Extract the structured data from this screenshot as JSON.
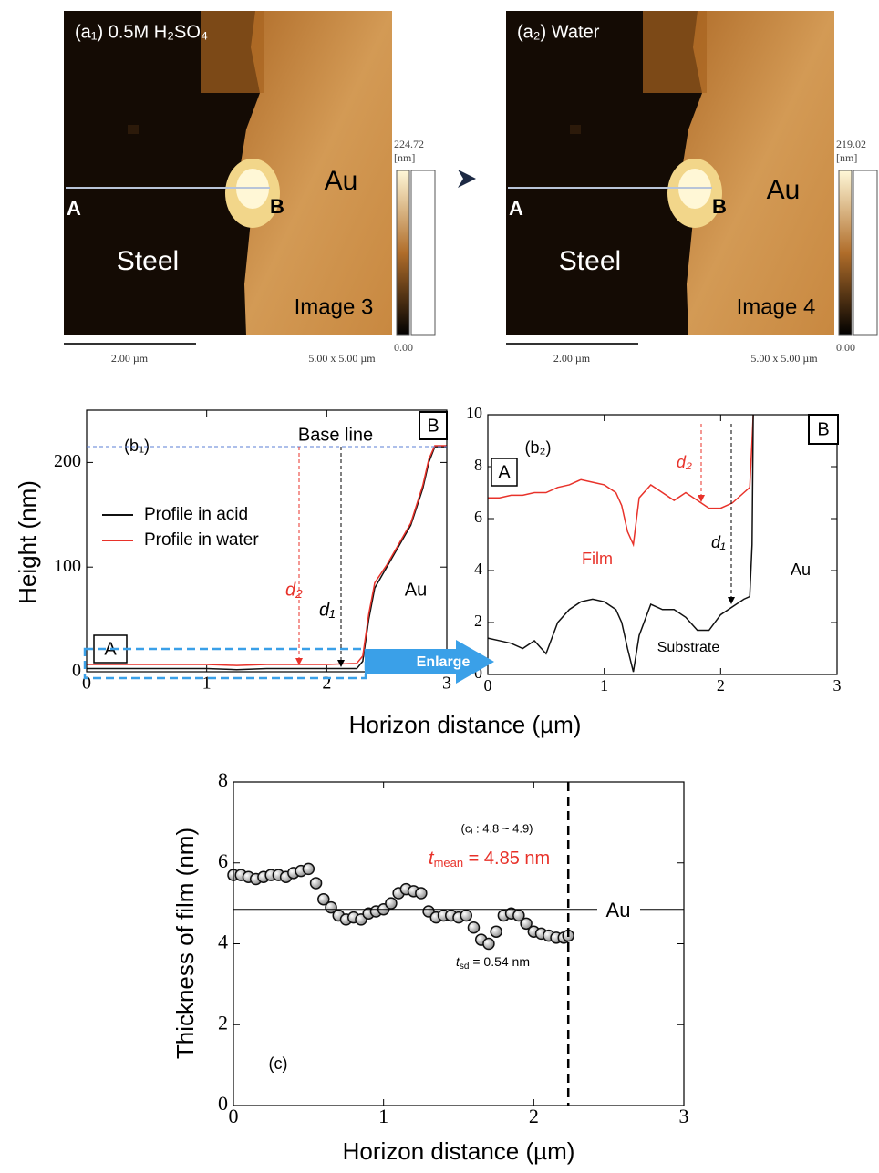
{
  "images": [
    {
      "label": "(a₁) 0.5M H₂SO₄",
      "au": "Au",
      "a": "A",
      "b": "B",
      "steel": "Steel",
      "image": "Image 3",
      "scale": "2.00 µm",
      "size": "5.00 x 5.00 µm",
      "cmax": "224.72",
      "unit": "[nm]",
      "cmin": "0.00"
    },
    {
      "label": "(a₂) Water",
      "au": "Au",
      "a": "A",
      "b": "B",
      "steel": "Steel",
      "image": "Image 4",
      "scale": "2.00 µm",
      "size": "5.00 x 5.00 µm",
      "cmax": "219.02",
      "unit": "[nm]",
      "cmin": "0.00"
    }
  ],
  "chart_data": [
    {
      "type": "line",
      "panel": "(b₁)",
      "y_label": "Height (nm)",
      "x_label": "Horizon distance (µm)",
      "x": [
        0,
        0.25,
        0.5,
        0.75,
        1.0,
        1.25,
        1.5,
        1.75,
        2.0,
        2.25,
        2.3,
        2.35,
        2.4,
        2.5,
        2.6,
        2.7,
        2.8,
        2.85,
        2.9,
        2.95,
        3.0
      ],
      "series": [
        {
          "name": "Profile in acid",
          "color": "#111111",
          "values": [
            3,
            3,
            3,
            3,
            3,
            2,
            3,
            3,
            3,
            3,
            10,
            50,
            80,
            100,
            120,
            140,
            175,
            200,
            215,
            215,
            215
          ]
        },
        {
          "name": "Profile in water",
          "color": "#e8322a",
          "values": [
            7,
            7,
            7,
            7,
            7,
            6,
            7,
            7,
            7,
            8,
            15,
            55,
            85,
            102,
            122,
            142,
            178,
            203,
            216,
            216,
            216
          ]
        }
      ],
      "xlim": [
        0,
        3
      ],
      "xticks": [
        0,
        1,
        2,
        3
      ],
      "ylim": [
        0,
        250
      ],
      "yticks": [
        0,
        100,
        200
      ],
      "annotations": {
        "base_line": "Base line",
        "a": "A",
        "b": "B",
        "au": "Au",
        "d2": "d₂",
        "d1": "d₁",
        "enlarge": "Enlarge"
      }
    },
    {
      "type": "line",
      "panel": "(b₂)",
      "x": [
        0,
        0.1,
        0.2,
        0.3,
        0.4,
        0.5,
        0.6,
        0.7,
        0.8,
        0.9,
        1.0,
        1.1,
        1.15,
        1.2,
        1.25,
        1.3,
        1.4,
        1.5,
        1.6,
        1.7,
        1.8,
        1.9,
        2.0,
        2.1,
        2.2,
        2.25,
        2.27,
        2.28
      ],
      "series": [
        {
          "name": "Profile in water",
          "color": "#e8322a",
          "values": [
            6.8,
            6.8,
            6.9,
            6.9,
            7.0,
            7.0,
            7.2,
            7.3,
            7.5,
            7.4,
            7.3,
            7.0,
            6.5,
            5.5,
            5.0,
            6.8,
            7.3,
            7.0,
            6.7,
            7.0,
            6.7,
            6.4,
            6.4,
            6.6,
            7.0,
            7.2,
            9,
            10
          ]
        },
        {
          "name": "Profile in acid",
          "color": "#111111",
          "values": [
            1.4,
            1.3,
            1.2,
            1.0,
            1.3,
            0.8,
            2.0,
            2.5,
            2.8,
            2.9,
            2.8,
            2.5,
            2.0,
            1.0,
            0.1,
            1.5,
            2.7,
            2.5,
            2.5,
            2.2,
            1.7,
            1.7,
            2.3,
            2.6,
            2.9,
            3.0,
            5,
            10
          ]
        }
      ],
      "xlim": [
        0,
        3
      ],
      "xticks": [
        0,
        1,
        2,
        3
      ],
      "ylim": [
        0,
        10
      ],
      "yticks": [
        0,
        2,
        4,
        6,
        8,
        10
      ],
      "annotations": {
        "a": "A",
        "b": "B",
        "film": "Film",
        "substrate": "Substrate",
        "au": "Au",
        "d2": "d₂",
        "d1": "d₁"
      }
    },
    {
      "type": "scatter",
      "panel": "(c)",
      "y_label": "Thickness of film (nm)",
      "x_label": "Horizon distance (µm)",
      "x": [
        0,
        0.05,
        0.1,
        0.15,
        0.2,
        0.25,
        0.3,
        0.35,
        0.4,
        0.45,
        0.5,
        0.55,
        0.6,
        0.65,
        0.7,
        0.75,
        0.8,
        0.85,
        0.9,
        0.95,
        1.0,
        1.05,
        1.1,
        1.15,
        1.2,
        1.25,
        1.3,
        1.35,
        1.4,
        1.45,
        1.5,
        1.55,
        1.6,
        1.65,
        1.7,
        1.75,
        1.8,
        1.85,
        1.9,
        1.95,
        2.0,
        2.05,
        2.1,
        2.15,
        2.2,
        2.23
      ],
      "values": [
        5.7,
        5.7,
        5.65,
        5.6,
        5.65,
        5.7,
        5.7,
        5.65,
        5.75,
        5.8,
        5.85,
        5.5,
        5.1,
        4.9,
        4.7,
        4.6,
        4.65,
        4.6,
        4.75,
        4.8,
        4.85,
        5.0,
        5.25,
        5.35,
        5.3,
        5.25,
        4.8,
        4.65,
        4.7,
        4.7,
        4.65,
        4.7,
        4.4,
        4.1,
        4.0,
        4.3,
        4.7,
        4.75,
        4.7,
        4.5,
        4.3,
        4.25,
        4.2,
        4.15,
        4.15,
        4.2
      ],
      "mean": 4.85,
      "boundary_x": 2.23,
      "xlim": [
        0,
        3
      ],
      "xticks": [
        0,
        1,
        2,
        3
      ],
      "ylim": [
        0,
        8
      ],
      "yticks": [
        0,
        2,
        4,
        6,
        8
      ],
      "annotations": {
        "ci": "(cᵢ : 4.8 ~ 4.9)",
        "t": "t",
        "mean_sub": "mean",
        "mean_text": " = 4.85 nm",
        "sd_sub": "sd",
        "sd_text": " = 0.54 nm",
        "au": "Au"
      }
    }
  ]
}
